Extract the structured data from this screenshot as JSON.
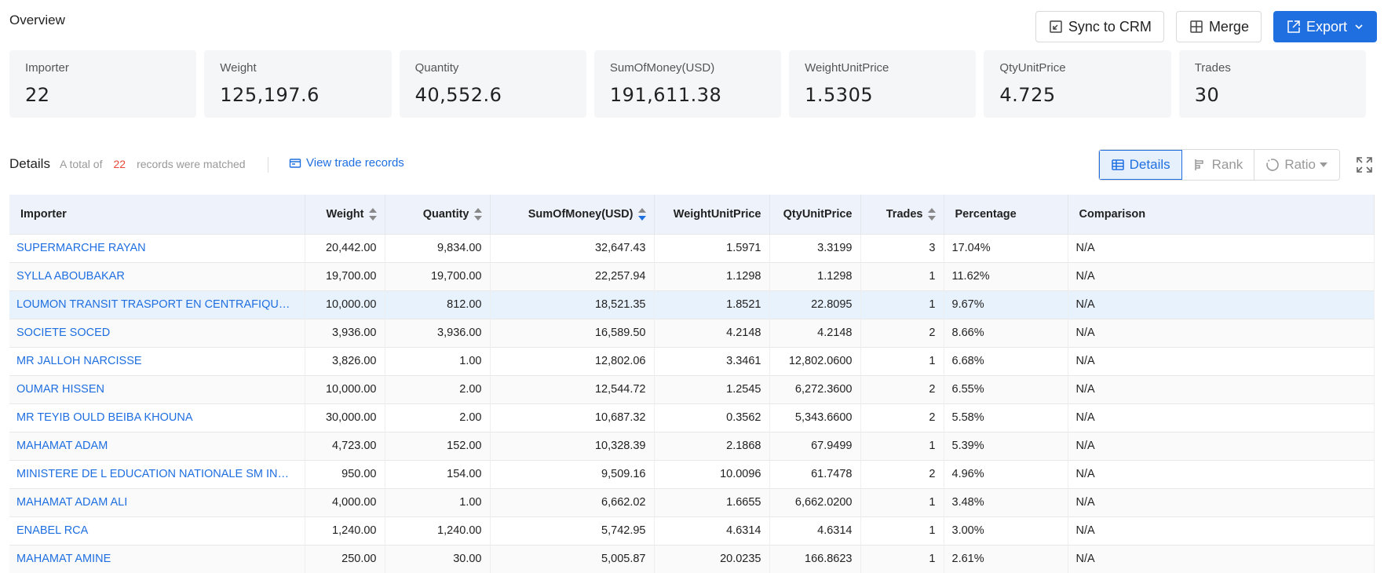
{
  "header": {
    "title": "Overview",
    "sync_label": "Sync to CRM",
    "merge_label": "Merge",
    "export_label": "Export"
  },
  "stats": [
    {
      "label": "Importer",
      "value": "22"
    },
    {
      "label": "Weight",
      "value": "125,197.6"
    },
    {
      "label": "Quantity",
      "value": "40,552.6"
    },
    {
      "label": "SumOfMoney(USD)",
      "value": "191,611.38"
    },
    {
      "label": "WeightUnitPrice",
      "value": "1.5305"
    },
    {
      "label": "QtyUnitPrice",
      "value": "4.725"
    },
    {
      "label": "Trades",
      "value": "30"
    }
  ],
  "details": {
    "title": "Details",
    "prefix": "A total of",
    "count": "22",
    "suffix": "records were matched",
    "view_link": "View trade records",
    "views": [
      "Details",
      "Rank",
      "Ratio"
    ]
  },
  "accent": "#1f6fe0",
  "table": {
    "columns": [
      "Importer",
      "Weight",
      "Quantity",
      "SumOfMoney(USD)",
      "WeightUnitPrice",
      "QtyUnitPrice",
      "Trades",
      "Percentage",
      "Comparison"
    ],
    "rows": [
      [
        "SUPERMARCHE RAYAN",
        "20,442.00",
        "9,834.00",
        "32,647.43",
        "1.5971",
        "3.3199",
        "3",
        "17.04%",
        "N/A"
      ],
      [
        "SYLLA ABOUBAKAR",
        "19,700.00",
        "19,700.00",
        "22,257.94",
        "1.1298",
        "1.1298",
        "1",
        "11.62%",
        "N/A"
      ],
      [
        "LOUMON TRANSIT TRASPORT EN CENTRAFIQUE LTTC",
        "10,000.00",
        "812.00",
        "18,521.35",
        "1.8521",
        "22.8095",
        "1",
        "9.67%",
        "N/A"
      ],
      [
        "SOCIETE SOCED",
        "3,936.00",
        "3,936.00",
        "16,589.50",
        "4.2148",
        "4.2148",
        "2",
        "8.66%",
        "N/A"
      ],
      [
        "MR JALLOH NARCISSE",
        "3,826.00",
        "1.00",
        "12,802.06",
        "3.3461",
        "12,802.0600",
        "1",
        "6.68%",
        "N/A"
      ],
      [
        "OUMAR HISSEN",
        "10,000.00",
        "2.00",
        "12,544.72",
        "1.2545",
        "6,272.3600",
        "2",
        "6.55%",
        "N/A"
      ],
      [
        "MR TEYIB OULD BEIBA KHOUNA",
        "30,000.00",
        "2.00",
        "10,687.32",
        "0.3562",
        "5,343.6600",
        "2",
        "5.58%",
        "N/A"
      ],
      [
        "MAHAMAT ADAM",
        "4,723.00",
        "152.00",
        "10,328.39",
        "2.1868",
        "67.9499",
        "1",
        "5.39%",
        "N/A"
      ],
      [
        "MINISTERE DE L EDUCATION NATIONALE SM INGENIERIE ...",
        "950.00",
        "154.00",
        "9,509.16",
        "10.0096",
        "61.7478",
        "2",
        "4.96%",
        "N/A"
      ],
      [
        "MAHAMAT ADAM ALI",
        "4,000.00",
        "1.00",
        "6,662.02",
        "1.6655",
        "6,662.0200",
        "1",
        "3.48%",
        "N/A"
      ],
      [
        "ENABEL RCA",
        "1,240.00",
        "1,240.00",
        "5,742.95",
        "4.6314",
        "4.6314",
        "1",
        "3.00%",
        "N/A"
      ],
      [
        "MAHAMAT AMINE",
        "250.00",
        "30.00",
        "5,005.87",
        "20.0235",
        "166.8623",
        "1",
        "2.61%",
        "N/A"
      ]
    ]
  }
}
